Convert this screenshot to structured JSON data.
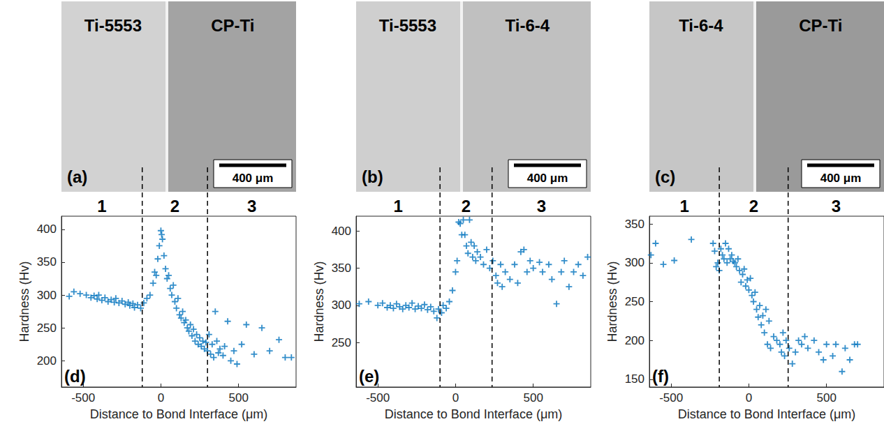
{
  "chart_data": [
    {
      "type": "scatter",
      "panel": "(d)",
      "micrograph": {
        "panel": "(a)",
        "left_material": "Ti-5553",
        "right_material": "CP-Ti",
        "scale_bar": "400 μm"
      },
      "x_label": "Distance to Bond Interface (μm)",
      "y_label": "Hardness (Hv)",
      "color": "#0072bd",
      "marker": "plus",
      "xlim": [
        -640,
        870
      ],
      "xticks": [
        -500,
        0,
        500
      ],
      "ylim": [
        160,
        420
      ],
      "yticks": [
        200,
        250,
        300,
        350,
        400
      ],
      "regions": {
        "boundaries": [
          -120,
          300
        ],
        "labels": [
          "1",
          "2",
          "3"
        ]
      },
      "x": [
        -590,
        -560,
        -520,
        -480,
        -450,
        -430,
        -410,
        -400,
        -380,
        -360,
        -340,
        -320,
        -300,
        -290,
        -270,
        -250,
        -230,
        -210,
        -200,
        -180,
        -170,
        -150,
        -130,
        -110,
        -90,
        -70,
        -50,
        -40,
        -30,
        -20,
        -10,
        0,
        5,
        10,
        20,
        30,
        40,
        50,
        60,
        70,
        80,
        90,
        100,
        110,
        120,
        130,
        140,
        150,
        160,
        170,
        180,
        190,
        200,
        210,
        220,
        230,
        240,
        250,
        260,
        270,
        280,
        290,
        300,
        310,
        320,
        330,
        340,
        350,
        360,
        370,
        380,
        400,
        410,
        430,
        450,
        470,
        490,
        520,
        550,
        600,
        650,
        700,
        760,
        800,
        840
      ],
      "values": [
        298,
        305,
        302,
        300,
        296,
        299,
        294,
        300,
        292,
        296,
        290,
        293,
        289,
        295,
        288,
        291,
        286,
        289,
        284,
        287,
        281,
        285,
        280,
        288,
        295,
        300,
        318,
        335,
        330,
        355,
        375,
        398,
        392,
        385,
        360,
        340,
        325,
        330,
        310,
        300,
        315,
        290,
        280,
        295,
        270,
        265,
        275,
        258,
        262,
        250,
        245,
        255,
        238,
        248,
        230,
        240,
        225,
        235,
        222,
        230,
        218,
        228,
        215,
        240,
        210,
        225,
        205,
        275,
        230,
        212,
        218,
        208,
        222,
        260,
        200,
        215,
        195,
        225,
        255,
        210,
        250,
        215,
        232,
        205,
        205
      ]
    },
    {
      "type": "scatter",
      "panel": "(e)",
      "micrograph": {
        "panel": "(b)",
        "left_material": "Ti-5553",
        "right_material": "Ti-6-4",
        "scale_bar": "400 μm"
      },
      "x_label": "Distance to Bond Interface (μm)",
      "y_label": "Hardness (Hv)",
      "color": "#0072bd",
      "marker": "plus",
      "xlim": [
        -640,
        870
      ],
      "xticks": [
        -500,
        0,
        500
      ],
      "ylim": [
        190,
        420
      ],
      "yticks": [
        250,
        300,
        350,
        400
      ],
      "regions": {
        "boundaries": [
          -100,
          235
        ],
        "labels": [
          "1",
          "2",
          "3"
        ]
      },
      "x": [
        -620,
        -560,
        -500,
        -470,
        -440,
        -420,
        -400,
        -380,
        -360,
        -340,
        -320,
        -300,
        -280,
        -260,
        -240,
        -220,
        -200,
        -180,
        -160,
        -140,
        -120,
        -110,
        -90,
        -80,
        -60,
        -40,
        -20,
        0,
        10,
        20,
        30,
        40,
        50,
        60,
        70,
        80,
        90,
        100,
        110,
        120,
        130,
        140,
        160,
        180,
        200,
        220,
        240,
        260,
        270,
        290,
        300,
        320,
        350,
        380,
        400,
        420,
        440,
        460,
        480,
        500,
        540,
        560,
        600,
        620,
        650,
        680,
        700,
        730,
        760,
        790,
        820,
        850
      ],
      "values": [
        302,
        305,
        300,
        303,
        297,
        300,
        296,
        302,
        298,
        295,
        300,
        297,
        303,
        295,
        299,
        296,
        301,
        294,
        298,
        292,
        283,
        295,
        290,
        300,
        296,
        305,
        320,
        345,
        360,
        412,
        410,
        395,
        415,
        395,
        380,
        370,
        415,
        385,
        365,
        380,
        360,
        372,
        365,
        355,
        375,
        350,
        360,
        340,
        330,
        355,
        325,
        345,
        335,
        355,
        330,
        372,
        375,
        345,
        360,
        350,
        358,
        345,
        355,
        335,
        302,
        345,
        360,
        325,
        345,
        355,
        340,
        365
      ]
    },
    {
      "type": "scatter",
      "panel": "(f)",
      "micrograph": {
        "panel": "(c)",
        "left_material": "Ti-6-4",
        "right_material": "CP-Ti",
        "scale_bar": "400 μm"
      },
      "x_label": "Distance to Bond Interface (μm)",
      "y_label": "Hardness (Hv)",
      "color": "#0072bd",
      "marker": "plus",
      "xlim": [
        -640,
        870
      ],
      "xticks": [
        -500,
        0,
        500
      ],
      "ylim": [
        140,
        360
      ],
      "yticks": [
        150,
        200,
        250,
        300,
        350
      ],
      "regions": {
        "boundaries": [
          -190,
          253
        ],
        "labels": [
          "1",
          "2",
          "3"
        ]
      },
      "x": [
        -630,
        -600,
        -550,
        -480,
        -370,
        -230,
        -220,
        -210,
        -200,
        -190,
        -180,
        -170,
        -160,
        -150,
        -140,
        -130,
        -120,
        -110,
        -100,
        -90,
        -80,
        -70,
        -60,
        -50,
        -40,
        -30,
        -20,
        -10,
        0,
        10,
        20,
        30,
        40,
        50,
        60,
        70,
        80,
        90,
        100,
        110,
        120,
        130,
        140,
        160,
        180,
        200,
        210,
        220,
        230,
        240,
        260,
        280,
        300,
        320,
        340,
        360,
        380,
        420,
        450,
        480,
        500,
        540,
        560,
        600,
        620,
        650,
        680,
        700
      ],
      "values": [
        310,
        325,
        298,
        303,
        330,
        325,
        315,
        295,
        300,
        290,
        318,
        310,
        305,
        325,
        300,
        318,
        305,
        310,
        302,
        300,
        295,
        305,
        290,
        275,
        285,
        292,
        270,
        278,
        265,
        280,
        258,
        250,
        262,
        240,
        230,
        245,
        220,
        232,
        210,
        240,
        195,
        225,
        190,
        205,
        200,
        195,
        185,
        210,
        180,
        200,
        190,
        170,
        185,
        200,
        195,
        205,
        190,
        200,
        185,
        175,
        195,
        180,
        195,
        160,
        190,
        175,
        195,
        195
      ]
    }
  ]
}
